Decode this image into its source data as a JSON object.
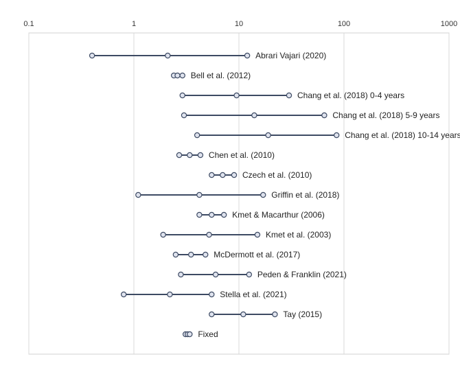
{
  "chart_data": {
    "type": "scatter",
    "title": "",
    "xlabel": "",
    "ylabel": "",
    "x_scale": "log",
    "xlim": [
      0.1,
      1000
    ],
    "x_ticks": [
      0.1,
      1,
      10,
      100,
      1000
    ],
    "x_tick_labels": [
      "0.1",
      "1",
      "10",
      "100",
      "1000"
    ],
    "grid": true,
    "legend": "none",
    "colors": {
      "line": "#3d4a63",
      "marker_fill": "#dfe3ee",
      "marker_stroke": "#3d4a63"
    },
    "rows": [
      {
        "label": "Abrari Vajari (2020)",
        "low": 0.4,
        "estimate": 2.1,
        "high": 12
      },
      {
        "label": "Bell et al. (2012)",
        "low": 2.4,
        "estimate": 2.6,
        "high": 2.9
      },
      {
        "label": "Chang et al. (2018) 0-4 years",
        "low": 2.9,
        "estimate": 9.5,
        "high": 30
      },
      {
        "label": "Chang et al. (2018) 5-9 years",
        "low": 3.0,
        "estimate": 14,
        "high": 65
      },
      {
        "label": "Chang et al. (2018) 10-14 years",
        "low": 4.0,
        "estimate": 19,
        "high": 85
      },
      {
        "label": "Chen et al. (2010)",
        "low": 2.7,
        "estimate": 3.4,
        "high": 4.3
      },
      {
        "label": "Czech et al. (2010)",
        "low": 5.5,
        "estimate": 7.0,
        "high": 9.0
      },
      {
        "label": "Griffin et al. (2018)",
        "low": 1.1,
        "estimate": 4.2,
        "high": 17
      },
      {
        "label": "Kmet & Macarthur (2006)",
        "low": 4.2,
        "estimate": 5.5,
        "high": 7.2
      },
      {
        "label": "Kmet et al. (2003)",
        "low": 1.9,
        "estimate": 5.2,
        "high": 15
      },
      {
        "label": "McDermott et al. (2017)",
        "low": 2.5,
        "estimate": 3.5,
        "high": 4.8
      },
      {
        "label": "Peden & Franklin (2021)",
        "low": 2.8,
        "estimate": 6.0,
        "high": 12.5
      },
      {
        "label": "Stella et al. (2021)",
        "low": 0.8,
        "estimate": 2.2,
        "high": 5.5
      },
      {
        "label": "Tay (2015)",
        "low": 5.5,
        "estimate": 11,
        "high": 22
      },
      {
        "label": "Fixed",
        "low": 3.1,
        "estimate": 3.25,
        "high": 3.4
      }
    ]
  }
}
